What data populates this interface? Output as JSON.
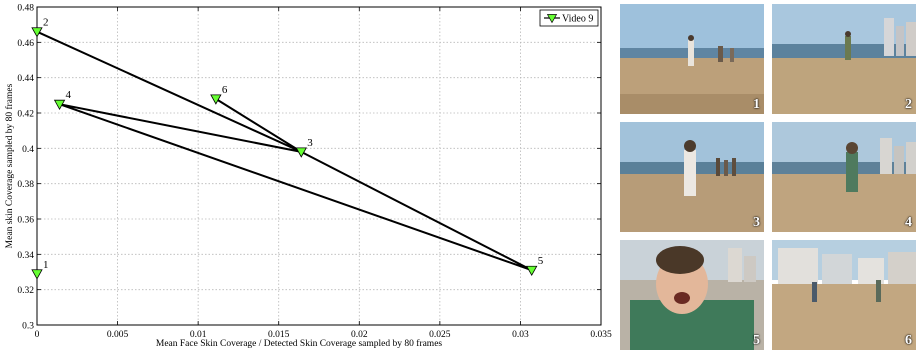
{
  "chart_data": {
    "type": "line",
    "title": "",
    "xlabel": "Mean Face Skin Coverage / Detected Skin Coverage sampled by 80 frames",
    "ylabel": "Mean skin Coverage sampled by 80 frames",
    "xlim": [
      0,
      0.035
    ],
    "ylim": [
      0.3,
      0.48
    ],
    "xticks": [
      "0",
      "0.005",
      "0.01",
      "0.015",
      "0.02",
      "0.025",
      "0.03",
      "0.035"
    ],
    "yticks": [
      "0.3",
      "0.32",
      "0.34",
      "0.36",
      "0.38",
      "0.4",
      "0.42",
      "0.44",
      "0.46",
      "0.48"
    ],
    "grid": true,
    "legend_position": "top-right",
    "series": [
      {
        "name": "Video 9",
        "color": "#000000",
        "marker": "triangle-down",
        "marker_color": "#66ff33",
        "points": [
          {
            "label": "1",
            "x": 0.0,
            "y": 0.329,
            "connected": false
          },
          {
            "label": "2",
            "x": 0.0,
            "y": 0.466,
            "connected": true
          },
          {
            "label": "3",
            "x": 0.0164,
            "y": 0.398,
            "connected": true
          },
          {
            "label": "4",
            "x": 0.0014,
            "y": 0.425,
            "connected": true
          },
          {
            "label": "5",
            "x": 0.0307,
            "y": 0.331,
            "connected": true
          },
          {
            "label": "6",
            "x": 0.0111,
            "y": 0.428,
            "connected": true
          }
        ],
        "path_order": [
          "2",
          "3",
          "4",
          "5",
          "3",
          "6"
        ]
      }
    ]
  },
  "thumbnails": [
    {
      "number": "1",
      "scene": "beach-running"
    },
    {
      "number": "2",
      "scene": "beach-walking"
    },
    {
      "number": "3",
      "scene": "beach-runner-closer"
    },
    {
      "number": "4",
      "scene": "beach-runner-green-jacket"
    },
    {
      "number": "5",
      "scene": "close-up-face"
    },
    {
      "number": "6",
      "scene": "beach-buildings"
    }
  ]
}
